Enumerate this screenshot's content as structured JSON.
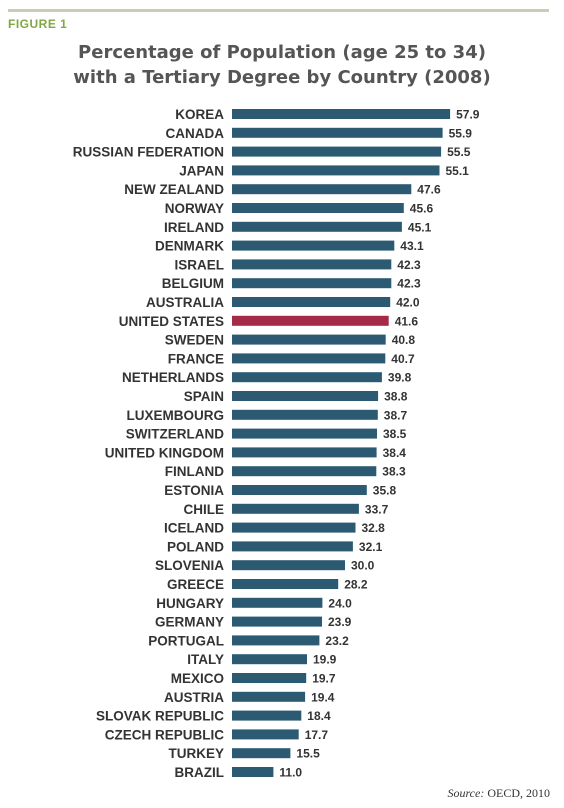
{
  "figure_label": "FIGURE 1",
  "source_label": "Source:",
  "source_text": "OECD, 2010",
  "colors": {
    "bar": "#2c5a72",
    "highlight": "#a52a47",
    "rule": "#c9ccb7",
    "figure_label": "#7ea843"
  },
  "chart_data": {
    "type": "bar",
    "orientation": "horizontal",
    "title": "Percentage of Population (age 25 to 34) with a Tertiary Degree by Country (2008)",
    "title_lines": [
      "Percentage of Population (age 25 to 34)",
      "with a Tertiary Degree by Country (2008)"
    ],
    "xlim": [
      0,
      60
    ],
    "grid": false,
    "highlight": "UNITED STATES",
    "categories": [
      "KOREA",
      "CANADA",
      "RUSSIAN FEDERATION",
      "JAPAN",
      "NEW ZEALAND",
      "NORWAY",
      "IRELAND",
      "DENMARK",
      "ISRAEL",
      "BELGIUM",
      "AUSTRALIA",
      "UNITED STATES",
      "SWEDEN",
      "FRANCE",
      "NETHERLANDS",
      "SPAIN",
      "LUXEMBOURG",
      "SWITZERLAND",
      "UNITED KINGDOM",
      "FINLAND",
      "ESTONIA",
      "CHILE",
      "ICELAND",
      "POLAND",
      "SLOVENIA",
      "GREECE",
      "HUNGARY",
      "GERMANY",
      "PORTUGAL",
      "ITALY",
      "MEXICO",
      "AUSTRIA",
      "SLOVAK REPUBLIC",
      "CZECH REPUBLIC",
      "TURKEY",
      "BRAZIL"
    ],
    "values": [
      57.9,
      55.9,
      55.5,
      55.1,
      47.6,
      45.6,
      45.1,
      43.1,
      42.3,
      42.3,
      42.0,
      41.6,
      40.8,
      40.7,
      39.8,
      38.8,
      38.7,
      38.5,
      38.4,
      38.3,
      35.8,
      33.7,
      32.8,
      32.1,
      30.0,
      28.2,
      24.0,
      23.9,
      23.2,
      19.9,
      19.7,
      19.4,
      18.4,
      17.7,
      15.5,
      11.0
    ],
    "value_labels": [
      "57.9",
      "55.9",
      "55.5",
      "55.1",
      "47.6",
      "45.6",
      "45.1",
      "43.1",
      "42.3",
      "42.3",
      "42.0",
      "41.6",
      "40.8",
      "40.7",
      "39.8",
      "38.8",
      "38.7",
      "38.5",
      "38.4",
      "38.3",
      "35.8",
      "33.7",
      "32.8",
      "32.1",
      "30.0",
      "28.2",
      "24.0",
      "23.9",
      "23.2",
      "19.9",
      "19.7",
      "19.4",
      "18.4",
      "17.7",
      "15.5",
      "11.0"
    ]
  }
}
